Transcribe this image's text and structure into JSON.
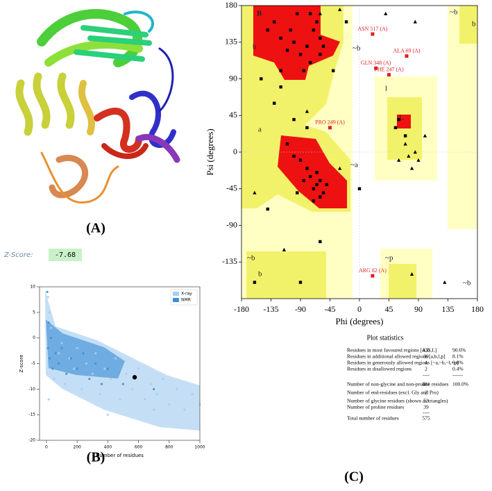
{
  "panel_labels": [
    "(A)",
    "(B)",
    "(C)"
  ],
  "zscore": {
    "label": "Z-Score:",
    "value": "-7.68"
  },
  "chart_data": [
    {
      "type": "scatter",
      "xlabel": "Number of residues",
      "ylabel": "Z-score",
      "xlim": [
        -45,
        1000
      ],
      "ylim": [
        -20,
        10
      ],
      "xticks": [
        0,
        200,
        400,
        600,
        800,
        1000
      ],
      "yticks": [
        -20,
        -15,
        -10,
        -5,
        0,
        5,
        10
      ],
      "legend": "upper right",
      "series": [
        {
          "name": "X-ray",
          "color": "#a9cdef",
          "marker": "circle",
          "x": [
            20,
            30,
            50,
            80,
            100,
            120,
            150,
            180,
            200,
            230,
            260,
            300,
            320,
            350,
            380,
            420,
            450,
            480,
            520,
            560,
            600,
            640,
            680,
            720,
            760,
            800,
            850,
            900,
            950,
            1000,
            10,
            15,
            400,
            700
          ],
          "values": [
            5,
            2,
            -8,
            -3,
            -1,
            -9,
            -4,
            -6,
            -2,
            -10,
            -5,
            -7,
            -3,
            -11,
            -6,
            -8,
            -4,
            -12,
            -7,
            -10,
            -6,
            -12,
            -9,
            -11,
            -8,
            -13,
            -10,
            -14,
            -11,
            -13,
            8,
            -12,
            -15,
            -14
          ]
        },
        {
          "name": "NMR",
          "color": "#3d8fd6",
          "marker": "circle",
          "x": [
            10,
            20,
            30,
            40,
            60,
            80,
            100,
            130,
            160,
            200,
            240,
            280,
            320,
            360,
            400,
            500,
            700,
            5,
            15
          ],
          "values": [
            -2,
            -4,
            0,
            -6,
            -3,
            -5,
            -2,
            -7,
            -4,
            -6,
            -3,
            -8,
            -5,
            -9,
            -6,
            -9,
            -10,
            9,
            3
          ]
        },
        {
          "color": "#000000",
          "marker": "dot",
          "x": [
            575
          ],
          "values": [
            -7.68
          ]
        }
      ]
    },
    {
      "type": "scatter",
      "xlabel": "Phi (degrees)",
      "ylabel": "Psi (degrees)",
      "xlim": [
        -180,
        180
      ],
      "ylim": [
        -180,
        180
      ],
      "xticks": [
        -180,
        -135,
        -90,
        -45,
        0,
        45,
        90,
        135,
        180
      ],
      "yticks": [
        -135,
        -90,
        -45,
        0,
        45,
        90,
        135,
        180
      ],
      "region_labels": [
        "B",
        "b",
        "a",
        "~a",
        "l",
        "L",
        "~b",
        "~b",
        "b",
        "~p",
        "~b",
        "b",
        "~b"
      ],
      "label_color": "#e02020",
      "residue_labels": [
        {
          "text": "ASN 517 (A)",
          "x": 20,
          "y": 145
        },
        {
          "text": "ALA 69 (A)",
          "x": 72,
          "y": 118
        },
        {
          "text": "GLN 348 (A)",
          "x": 25,
          "y": 103
        },
        {
          "text": "PHE 247 (A)",
          "x": 45,
          "y": 95
        },
        {
          "text": "PRO 249 (A)",
          "x": -45,
          "y": 30
        },
        {
          "text": "ARG 82 (A)",
          "x": 20,
          "y": -152
        }
      ],
      "series": [
        {
          "color": "#000000",
          "marker": "square",
          "x": [
            -60,
            -70,
            -80,
            -90,
            -100,
            -110,
            -120,
            -130,
            -65,
            -75,
            -85,
            -55,
            -140,
            -95,
            -120,
            -60,
            -105,
            -75,
            -65,
            -60,
            -70,
            -75,
            -55,
            -80,
            -90,
            -65,
            -60,
            -100,
            -50,
            -70,
            -85,
            -110,
            -95,
            -130,
            -150,
            -120,
            -100,
            -80,
            -140,
            -60,
            -160,
            -90,
            60,
            55,
            70,
            -20,
            -40,
            0
          ],
          "values": [
            140,
            150,
            130,
            120,
            135,
            125,
            140,
            160,
            160,
            110,
            100,
            130,
            150,
            170,
            100,
            120,
            150,
            170,
            -40,
            -35,
            -45,
            -30,
            -50,
            -20,
            -10,
            -25,
            -55,
            -5,
            -40,
            -60,
            -35,
            10,
            -50,
            60,
            90,
            80,
            40,
            30,
            -70,
            -110,
            -160,
            -160,
            40,
            30,
            20,
            160,
            100,
            -45
          ]
        },
        {
          "color": "#000000",
          "marker": "triangle",
          "x": [
            -60,
            40,
            85,
            -30,
            60,
            75,
            80,
            85,
            90,
            70,
            -30,
            -160,
            130,
            80,
            -115,
            -80,
            100
          ],
          "values": [
            170,
            170,
            160,
            175,
            -10,
            -5,
            -20,
            0,
            -10,
            10,
            -20,
            -50,
            -160,
            -150,
            -120,
            50,
            20
          ]
        }
      ]
    }
  ],
  "plot_statistics": {
    "title": "Plot statistics",
    "rows": [
      [
        "Residues in most favoured regions [A,B,L]",
        "436",
        "90.6%"
      ],
      [
        "Residues in additional allowed regions [a,b,l,p]",
        "39",
        "8.1%"
      ],
      [
        "Residues in generously allowed regions [~a,~b,~l,~p]",
        "4",
        "0.8%"
      ],
      [
        "Residues in disallowed regions",
        "2",
        "0.4%"
      ],
      [
        "",
        "----",
        "------"
      ],
      [
        "Number of non-glycine and non-proline residues",
        "481",
        "100.0%"
      ],
      [
        "Number of end-residues (excl. Gly and Pro)",
        "2",
        ""
      ],
      [
        "Number of glycine residues (shown as triangles)",
        "53",
        ""
      ],
      [
        "Number of proline residues",
        "39",
        ""
      ],
      [
        "",
        "----",
        ""
      ],
      [
        "Total number of residues",
        "575",
        ""
      ]
    ]
  }
}
